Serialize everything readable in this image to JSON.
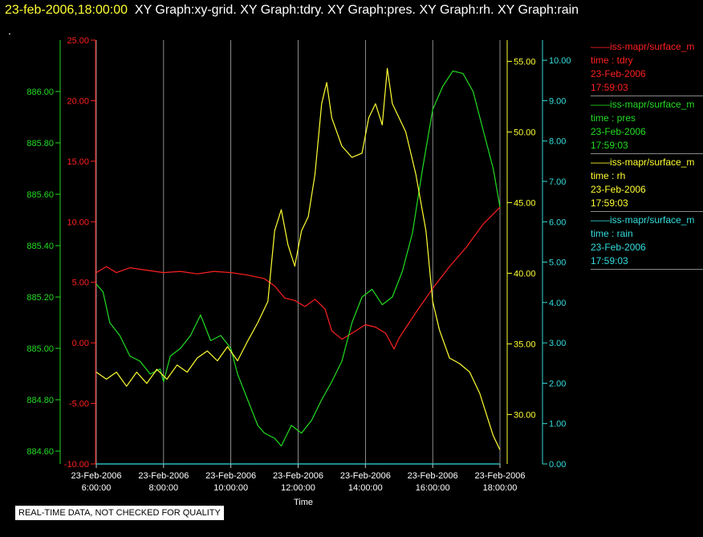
{
  "header": {
    "timestamp": "23-feb-2006,18:00:00",
    "graphs": "XY Graph:xy-grid.  XY Graph:tdry.  XY Graph:pres.  XY Graph:rh.  XY Graph:rain"
  },
  "dot": ".",
  "notice": "REAL-TIME DATA, NOT CHECKED FOR QUALITY",
  "colors": {
    "tdry": "#ff2020",
    "pres": "#22dd22",
    "rh": "#ffff33",
    "rain": "#33dddd",
    "grid": "#c8c8c8"
  },
  "legend": [
    {
      "name": "——iss-mapr/surface_m",
      "field": "time : tdry",
      "date": "23-Feb-2006",
      "time": "17:59:03",
      "color": "#ff2020"
    },
    {
      "name": "——iss-mapr/surface_m",
      "field": "time : pres",
      "date": "23-Feb-2006",
      "time": "17:59:03",
      "color": "#22dd22"
    },
    {
      "name": "——iss-mapr/surface_m",
      "field": "time : rh",
      "date": "23-Feb-2006",
      "time": "17:59:03",
      "color": "#ffff33"
    },
    {
      "name": "——iss-mapr/surface_m",
      "field": "time : rain",
      "date": "23-Feb-2006",
      "time": "17:59:03",
      "color": "#33dddd"
    }
  ],
  "chart_data": {
    "type": "line",
    "xlabel": "Time",
    "x_range": [
      6,
      18
    ],
    "x_ticks": [
      {
        "value": 6,
        "date": "23-Feb-2006",
        "time": "6:00:00"
      },
      {
        "value": 8,
        "date": "23-Feb-2006",
        "time": "8:00:00"
      },
      {
        "value": 10,
        "date": "23-Feb-2006",
        "time": "10:00:00"
      },
      {
        "value": 12,
        "date": "23-Feb-2006",
        "time": "12:00:00"
      },
      {
        "value": 14,
        "date": "23-Feb-2006",
        "time": "14:00:00"
      },
      {
        "value": 16,
        "date": "23-Feb-2006",
        "time": "16:00:00"
      },
      {
        "value": 18,
        "date": "23-Feb-2006",
        "time": "18:00:00"
      }
    ],
    "axes": {
      "pres": {
        "range": [
          884.55,
          886.2
        ],
        "ticks": [
          884.6,
          884.8,
          885.0,
          885.2,
          885.4,
          885.6,
          885.8,
          886.0
        ],
        "labels": [
          "884.60",
          "884.80",
          "885.00",
          "885.20",
          "885.40",
          "885.60",
          "885.80",
          "886.00"
        ]
      },
      "tdry": {
        "range": [
          -10,
          25
        ],
        "ticks": [
          -10,
          -5,
          0,
          5,
          10,
          15,
          20,
          25
        ],
        "labels": [
          "-10.00",
          "-5.00",
          "0.00",
          "5.00",
          "10.00",
          "15.00",
          "20.00",
          "25.00"
        ]
      },
      "rh": {
        "range": [
          26.5,
          56.5
        ],
        "ticks": [
          30,
          35,
          40,
          45,
          50,
          55
        ],
        "labels": [
          "30.00",
          "35.00",
          "40.00",
          "45.00",
          "50.00",
          "55.00"
        ]
      },
      "rain": {
        "range": [
          0,
          10.5
        ],
        "ticks": [
          0,
          1,
          2,
          3,
          4,
          5,
          6,
          7,
          8,
          9,
          10
        ],
        "labels": [
          "0.00",
          "1.00",
          "2.00",
          "3.00",
          "4.00",
          "5.00",
          "6.00",
          "7.00",
          "8.00",
          "9.00",
          "10.00"
        ]
      }
    },
    "series": [
      {
        "key": "tdry",
        "axis": "tdry",
        "points": [
          [
            6,
            5.8
          ],
          [
            6.3,
            6.3
          ],
          [
            6.6,
            5.8
          ],
          [
            7,
            6.2
          ],
          [
            7.5,
            6.0
          ],
          [
            8,
            5.8
          ],
          [
            8.5,
            5.9
          ],
          [
            9,
            5.7
          ],
          [
            9.5,
            5.9
          ],
          [
            10,
            5.8
          ],
          [
            10.5,
            5.6
          ],
          [
            11,
            5.3
          ],
          [
            11.3,
            4.7
          ],
          [
            11.6,
            3.7
          ],
          [
            11.9,
            3.5
          ],
          [
            12.2,
            3.0
          ],
          [
            12.5,
            3.6
          ],
          [
            12.8,
            2.8
          ],
          [
            13,
            1.0
          ],
          [
            13.3,
            0.3
          ],
          [
            13.6,
            0.8
          ],
          [
            14,
            1.5
          ],
          [
            14.3,
            1.3
          ],
          [
            14.6,
            0.8
          ],
          [
            14.85,
            -0.5
          ],
          [
            15,
            0.4
          ],
          [
            15.5,
            2.5
          ],
          [
            16,
            4.5
          ],
          [
            16.5,
            6.3
          ],
          [
            17,
            7.9
          ],
          [
            17.5,
            9.8
          ],
          [
            18,
            11.2
          ]
        ]
      },
      {
        "key": "pres",
        "axis": "pres",
        "points": [
          [
            6,
            885.25
          ],
          [
            6.2,
            885.22
          ],
          [
            6.4,
            885.1
          ],
          [
            6.7,
            885.05
          ],
          [
            7,
            884.97
          ],
          [
            7.3,
            884.95
          ],
          [
            7.6,
            884.9
          ],
          [
            7.9,
            884.92
          ],
          [
            8,
            884.87
          ],
          [
            8.2,
            884.97
          ],
          [
            8.5,
            885.0
          ],
          [
            8.8,
            885.05
          ],
          [
            9.1,
            885.13
          ],
          [
            9.4,
            885.03
          ],
          [
            9.7,
            885.05
          ],
          [
            10,
            885.0
          ],
          [
            10.2,
            884.9
          ],
          [
            10.5,
            884.8
          ],
          [
            10.8,
            884.7
          ],
          [
            11,
            884.67
          ],
          [
            11.3,
            884.65
          ],
          [
            11.5,
            884.62
          ],
          [
            11.8,
            884.7
          ],
          [
            12.1,
            884.67
          ],
          [
            12.4,
            884.72
          ],
          [
            12.7,
            884.8
          ],
          [
            13,
            884.87
          ],
          [
            13.3,
            884.95
          ],
          [
            13.6,
            885.1
          ],
          [
            13.9,
            885.2
          ],
          [
            14.2,
            885.23
          ],
          [
            14.5,
            885.17
          ],
          [
            14.8,
            885.2
          ],
          [
            15.1,
            885.3
          ],
          [
            15.4,
            885.45
          ],
          [
            15.7,
            885.7
          ],
          [
            16,
            885.93
          ],
          [
            16.3,
            886.02
          ],
          [
            16.6,
            886.08
          ],
          [
            16.9,
            886.07
          ],
          [
            17.2,
            886.0
          ],
          [
            17.5,
            885.85
          ],
          [
            17.8,
            885.7
          ],
          [
            18,
            885.55
          ]
        ]
      },
      {
        "key": "rh",
        "axis": "rh",
        "points": [
          [
            6,
            33.0
          ],
          [
            6.3,
            32.5
          ],
          [
            6.6,
            33.0
          ],
          [
            6.9,
            32.0
          ],
          [
            7.2,
            33.0
          ],
          [
            7.5,
            32.2
          ],
          [
            7.8,
            33.2
          ],
          [
            8.1,
            32.5
          ],
          [
            8.4,
            33.5
          ],
          [
            8.7,
            33.0
          ],
          [
            9,
            34.0
          ],
          [
            9.3,
            34.5
          ],
          [
            9.6,
            33.8
          ],
          [
            9.9,
            34.8
          ],
          [
            10.2,
            33.8
          ],
          [
            10.5,
            35.2
          ],
          [
            10.8,
            36.5
          ],
          [
            11.1,
            38.0
          ],
          [
            11.3,
            43.0
          ],
          [
            11.5,
            44.5
          ],
          [
            11.7,
            42.0
          ],
          [
            11.9,
            40.5
          ],
          [
            12.1,
            43.0
          ],
          [
            12.3,
            44.0
          ],
          [
            12.5,
            47.0
          ],
          [
            12.7,
            52.0
          ],
          [
            12.85,
            53.5
          ],
          [
            13,
            51.0
          ],
          [
            13.3,
            49.0
          ],
          [
            13.6,
            48.2
          ],
          [
            13.9,
            48.5
          ],
          [
            14.1,
            51.0
          ],
          [
            14.3,
            52.0
          ],
          [
            14.5,
            50.5
          ],
          [
            14.65,
            54.5
          ],
          [
            14.8,
            52.0
          ],
          [
            15.0,
            51.0
          ],
          [
            15.2,
            50.0
          ],
          [
            15.5,
            47.0
          ],
          [
            15.8,
            43.0
          ],
          [
            16.0,
            38.0
          ],
          [
            16.2,
            36.0
          ],
          [
            16.5,
            34.0
          ],
          [
            16.8,
            33.6
          ],
          [
            17.1,
            33.0
          ],
          [
            17.4,
            31.5
          ],
          [
            17.6,
            30.0
          ],
          [
            17.8,
            28.5
          ],
          [
            18,
            27.5
          ]
        ]
      },
      {
        "key": "rain",
        "axis": "rain",
        "points": [
          [
            6,
            0.0
          ],
          [
            18,
            0.0
          ]
        ]
      }
    ]
  }
}
